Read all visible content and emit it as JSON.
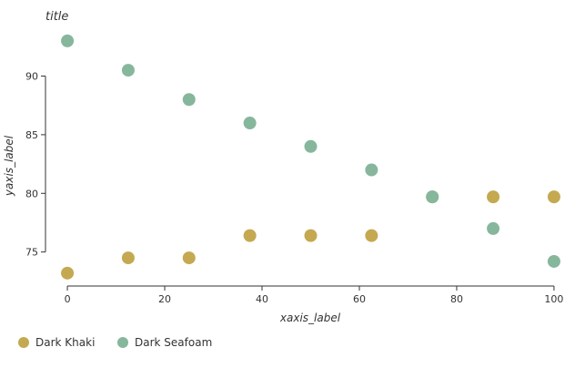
{
  "chart_data": {
    "type": "scatter",
    "title": "title",
    "xlabel": "xaxis_label",
    "ylabel": "yaxis_label",
    "xlim": [
      -4.5,
      104.5
    ],
    "ylim": [
      72.1,
      94.0
    ],
    "x_ticks": [
      0,
      20,
      40,
      60,
      80,
      100
    ],
    "y_ticks": [
      75,
      80,
      85,
      90
    ],
    "grid": false,
    "legend_position": "bottom",
    "series": [
      {
        "name": "Dark Khaki",
        "color": "#C4A951",
        "points": [
          {
            "x": 0,
            "y": 73.2
          },
          {
            "x": 12.5,
            "y": 74.5
          },
          {
            "x": 25,
            "y": 74.5
          },
          {
            "x": 37.5,
            "y": 76.4
          },
          {
            "x": 50,
            "y": 76.4
          },
          {
            "x": 62.5,
            "y": 76.4
          },
          {
            "x": 75,
            "y": 79.7
          },
          {
            "x": 87.5,
            "y": 79.7
          },
          {
            "x": 100,
            "y": 79.7
          }
        ]
      },
      {
        "name": "Dark Seafoam",
        "color": "#86B79C",
        "points": [
          {
            "x": 0,
            "y": 93.0
          },
          {
            "x": 12.5,
            "y": 90.5
          },
          {
            "x": 25,
            "y": 88.0
          },
          {
            "x": 37.5,
            "y": 86.0
          },
          {
            "x": 50,
            "y": 84.0
          },
          {
            "x": 62.5,
            "y": 82.0
          },
          {
            "x": 75,
            "y": 79.7
          },
          {
            "x": 87.5,
            "y": 77.0
          },
          {
            "x": 100,
            "y": 74.2
          }
        ]
      }
    ]
  }
}
